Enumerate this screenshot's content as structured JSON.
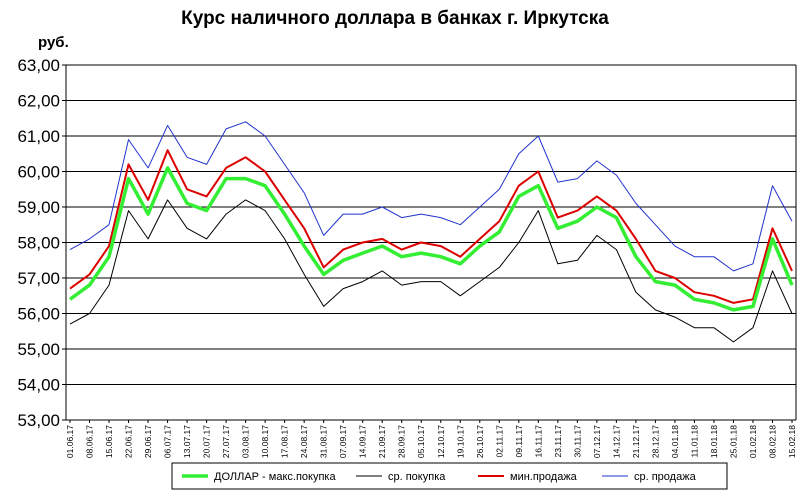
{
  "chart_data": {
    "type": "line",
    "title": "Курс наличного доллара в банках г. Иркутска",
    "ylabel": "руб.",
    "xlabel": "",
    "ylim": [
      53,
      63
    ],
    "grid": "horizontal",
    "legend_position": "bottom",
    "yticks": [
      "53,00",
      "54,00",
      "55,00",
      "56,00",
      "57,00",
      "58,00",
      "59,00",
      "60,00",
      "61,00",
      "62,00",
      "63,00"
    ],
    "categories": [
      "01.06.17",
      "08.06.17",
      "15.06.17",
      "22.06.17",
      "29.06.17",
      "06.07.17",
      "13.07.17",
      "20.07.17",
      "27.07.17",
      "03.08.17",
      "10.08.17",
      "17.08.17",
      "24.08.17",
      "31.08.17",
      "07.09.17",
      "14.09.17",
      "21.09.17",
      "28.09.17",
      "05.10.17",
      "12.10.17",
      "19.10.17",
      "26.10.17",
      "02.11.17",
      "09.11.17",
      "16.11.17",
      "23.11.17",
      "30.11.17",
      "07.12.17",
      "14.12.17",
      "21.12.17",
      "28.12.17",
      "04.01.18",
      "11.01.18",
      "18.01.18",
      "25.01.18",
      "01.02.18",
      "08.02.18",
      "15.02.18"
    ],
    "series": [
      {
        "name": "ДОЛЛАР - макс.покупка",
        "color": "#33ee33",
        "values": [
          56.4,
          56.8,
          57.6,
          59.8,
          58.8,
          60.1,
          59.1,
          58.9,
          59.8,
          59.8,
          59.6,
          58.8,
          57.9,
          57.1,
          57.5,
          57.7,
          57.9,
          57.6,
          57.7,
          57.6,
          57.4,
          57.9,
          58.3,
          59.3,
          59.6,
          58.4,
          58.6,
          59.0,
          58.7,
          57.6,
          56.9,
          56.8,
          56.4,
          56.3,
          56.1,
          56.2,
          58.1,
          56.8
        ]
      },
      {
        "name": "ср. покупка",
        "color": "#000000",
        "values": [
          55.7,
          56.0,
          56.8,
          58.9,
          58.1,
          59.2,
          58.4,
          58.1,
          58.8,
          59.2,
          58.9,
          58.1,
          57.1,
          56.2,
          56.7,
          56.9,
          57.2,
          56.8,
          56.9,
          56.9,
          56.5,
          56.9,
          57.3,
          58.0,
          58.9,
          57.4,
          57.5,
          58.2,
          57.8,
          56.6,
          56.1,
          55.9,
          55.6,
          55.6,
          55.2,
          55.6,
          57.2,
          56.0
        ]
      },
      {
        "name": "мин.продажа",
        "color": "#dd0000",
        "values": [
          56.7,
          57.1,
          57.9,
          60.2,
          59.2,
          60.6,
          59.5,
          59.3,
          60.1,
          60.4,
          60.0,
          59.2,
          58.4,
          57.3,
          57.8,
          58.0,
          58.1,
          57.8,
          58.0,
          57.9,
          57.6,
          58.1,
          58.6,
          59.6,
          60.0,
          58.7,
          58.9,
          59.3,
          58.9,
          58.1,
          57.2,
          57.0,
          56.6,
          56.5,
          56.3,
          56.4,
          58.4,
          57.2
        ]
      },
      {
        "name": "ср. продажа",
        "color": "#2233cc",
        "values": [
          57.8,
          58.1,
          58.5,
          60.9,
          60.1,
          61.3,
          60.4,
          60.2,
          61.2,
          61.4,
          61.0,
          60.2,
          59.4,
          58.2,
          58.8,
          58.8,
          59.0,
          58.7,
          58.8,
          58.7,
          58.5,
          59.0,
          59.5,
          60.5,
          61.0,
          59.7,
          59.8,
          60.3,
          59.9,
          59.1,
          58.5,
          57.9,
          57.6,
          57.6,
          57.2,
          57.4,
          59.6,
          58.6
        ]
      }
    ]
  }
}
